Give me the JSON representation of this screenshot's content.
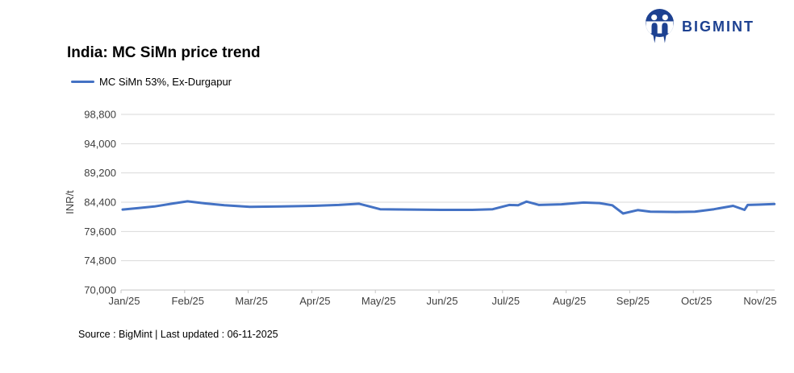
{
  "brand": {
    "name": "BIGMINT",
    "color": "#1d4191"
  },
  "header": {
    "title": "India: MC SiMn price trend"
  },
  "legend": {
    "label": "MC SiMn 53%, Ex-Durgapur"
  },
  "footer": {
    "source": "Source : BigMint | Last updated : 06-11-2025"
  },
  "colors": {
    "line": "#4472c4",
    "grid": "#d9d9d9",
    "axis": "#c6c6c6",
    "axis_text": "#3f3f3f"
  },
  "chart_data": {
    "type": "line",
    "title": "India: MC SiMn price trend",
    "xlabel": "",
    "ylabel": "INR/t",
    "ylim": [
      70000,
      98800
    ],
    "ytick_step": 4800,
    "grid": "horizontal",
    "legend_position": "top-left",
    "categories": [
      "Jan/25",
      "Feb/25",
      "Mar/25",
      "Apr/25",
      "May/25",
      "Jun/25",
      "Jul/25",
      "Aug/25",
      "Sep/25",
      "Oct/25",
      "Nov/25"
    ],
    "series": [
      {
        "name": "MC SiMn 53%, Ex-Durgapur",
        "color": "#4472c4",
        "points": [
          {
            "x": 0.0,
            "y": 83200
          },
          {
            "x": 0.25,
            "y": 83450
          },
          {
            "x": 0.5,
            "y": 83700
          },
          {
            "x": 0.8,
            "y": 84200
          },
          {
            "x": 1.02,
            "y": 84550
          },
          {
            "x": 1.3,
            "y": 84200
          },
          {
            "x": 1.6,
            "y": 83900
          },
          {
            "x": 2.0,
            "y": 83650
          },
          {
            "x": 2.5,
            "y": 83700
          },
          {
            "x": 3.0,
            "y": 83800
          },
          {
            "x": 3.4,
            "y": 83950
          },
          {
            "x": 3.72,
            "y": 84150
          },
          {
            "x": 4.05,
            "y": 83250
          },
          {
            "x": 4.5,
            "y": 83200
          },
          {
            "x": 5.0,
            "y": 83150
          },
          {
            "x": 5.5,
            "y": 83150
          },
          {
            "x": 5.82,
            "y": 83250
          },
          {
            "x": 6.08,
            "y": 83950
          },
          {
            "x": 6.22,
            "y": 83900
          },
          {
            "x": 6.35,
            "y": 84500
          },
          {
            "x": 6.55,
            "y": 83950
          },
          {
            "x": 6.9,
            "y": 84050
          },
          {
            "x": 7.25,
            "y": 84350
          },
          {
            "x": 7.5,
            "y": 84250
          },
          {
            "x": 7.7,
            "y": 83900
          },
          {
            "x": 7.87,
            "y": 82550
          },
          {
            "x": 8.1,
            "y": 83100
          },
          {
            "x": 8.3,
            "y": 82850
          },
          {
            "x": 8.7,
            "y": 82800
          },
          {
            "x": 9.0,
            "y": 82850
          },
          {
            "x": 9.3,
            "y": 83250
          },
          {
            "x": 9.6,
            "y": 83800
          },
          {
            "x": 9.78,
            "y": 83150
          },
          {
            "x": 9.83,
            "y": 83950
          },
          {
            "x": 10.0,
            "y": 84000
          },
          {
            "x": 10.25,
            "y": 84100
          }
        ]
      }
    ]
  }
}
